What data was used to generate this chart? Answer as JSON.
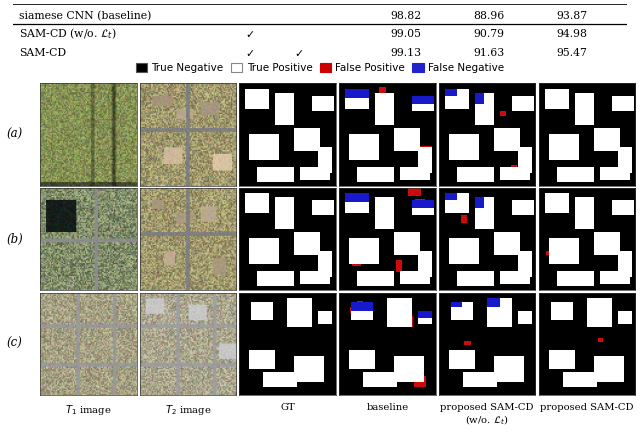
{
  "table_rows": [
    {
      "method": "siamese CNN (baseline)",
      "check1": "",
      "check2": "",
      "v1": "98.82",
      "v2": "88.96",
      "v3": "93.87"
    },
    {
      "method": "SAM-CD (w/o. ℒ_t)",
      "check1": "✓",
      "check2": "",
      "v1": "99.05",
      "v2": "90.79",
      "v3": "94.98"
    },
    {
      "method": "SAM-CD",
      "check1": "✓",
      "check2": "✓",
      "v1": "99.13",
      "v2": "91.63",
      "v3": "95.47"
    }
  ],
  "legend": [
    {
      "label": "True Negative",
      "facecolor": "#000000",
      "edgecolor": "#555555"
    },
    {
      "label": "True Positive",
      "facecolor": "#ffffff",
      "edgecolor": "#888888"
    },
    {
      "label": "False Positive",
      "facecolor": "#cc0000",
      "edgecolor": "#cc0000"
    },
    {
      "label": "False Negative",
      "facecolor": "#2222cc",
      "edgecolor": "#2222cc"
    }
  ],
  "row_labels": [
    "(a)",
    "(b)",
    "(c)"
  ],
  "col_labels": [
    "$T_1$ image",
    "$T_2$ image",
    "GT",
    "baseline",
    "proposed SAM-CD\n(w/o. $\\mathcal{L}_t$)",
    "proposed SAM-CD"
  ],
  "figure_bg": "#ffffff"
}
